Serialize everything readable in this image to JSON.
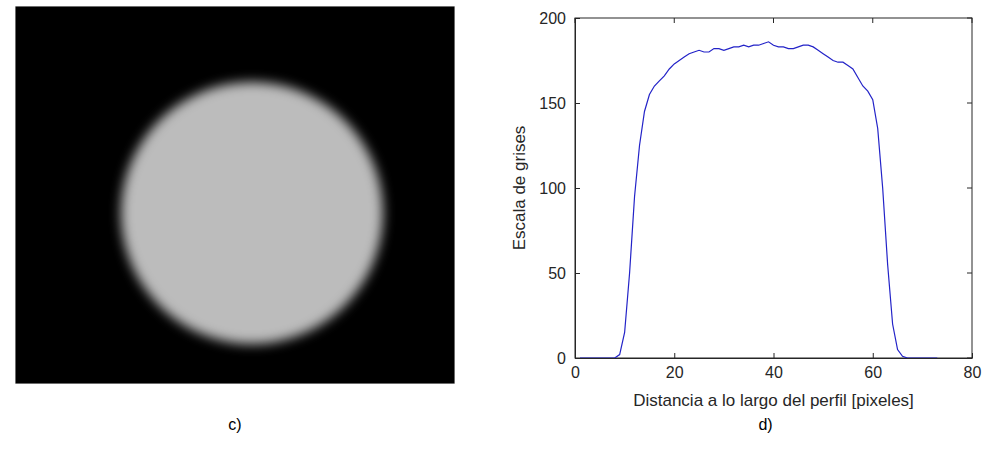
{
  "image": {
    "caption": "c)"
  },
  "chart_data": {
    "type": "line",
    "caption": "d)",
    "x_label": "Distancia a lo largo del perfil [pixeles]",
    "y_label": "Escala de grises",
    "x": [
      1,
      2,
      3,
      4,
      5,
      6,
      7,
      8,
      9,
      10,
      11,
      12,
      13,
      14,
      15,
      16,
      17,
      18,
      19,
      20,
      21,
      22,
      23,
      24,
      25,
      26,
      27,
      28,
      29,
      30,
      31,
      32,
      33,
      34,
      35,
      36,
      37,
      38,
      39,
      40,
      41,
      42,
      43,
      44,
      45,
      46,
      47,
      48,
      49,
      50,
      51,
      52,
      53,
      54,
      55,
      56,
      57,
      58,
      59,
      60,
      61,
      62,
      63,
      64,
      65,
      66,
      67,
      68,
      69,
      70,
      71,
      72,
      73
    ],
    "values": [
      0,
      0,
      0,
      0,
      0,
      0,
      0,
      0,
      2,
      15,
      50,
      95,
      125,
      145,
      155,
      160,
      163,
      166,
      170,
      173,
      175,
      177,
      179,
      180,
      181,
      180,
      180,
      182,
      182,
      181,
      182,
      183,
      183,
      184,
      183,
      184,
      184,
      185,
      186,
      184,
      183,
      183,
      182,
      182,
      183,
      184,
      184,
      183,
      181,
      179,
      177,
      175,
      174,
      174,
      172,
      170,
      165,
      160,
      157,
      152,
      135,
      100,
      55,
      20,
      5,
      1,
      0,
      0,
      0,
      0,
      0,
      0,
      0
    ],
    "color": "#2323c8",
    "xlim": [
      0,
      80
    ],
    "xticks": [
      0,
      20,
      40,
      60,
      80
    ],
    "ylim": [
      0,
      200
    ],
    "yticks": [
      0,
      50,
      100,
      150,
      200
    ],
    "grid": false
  }
}
